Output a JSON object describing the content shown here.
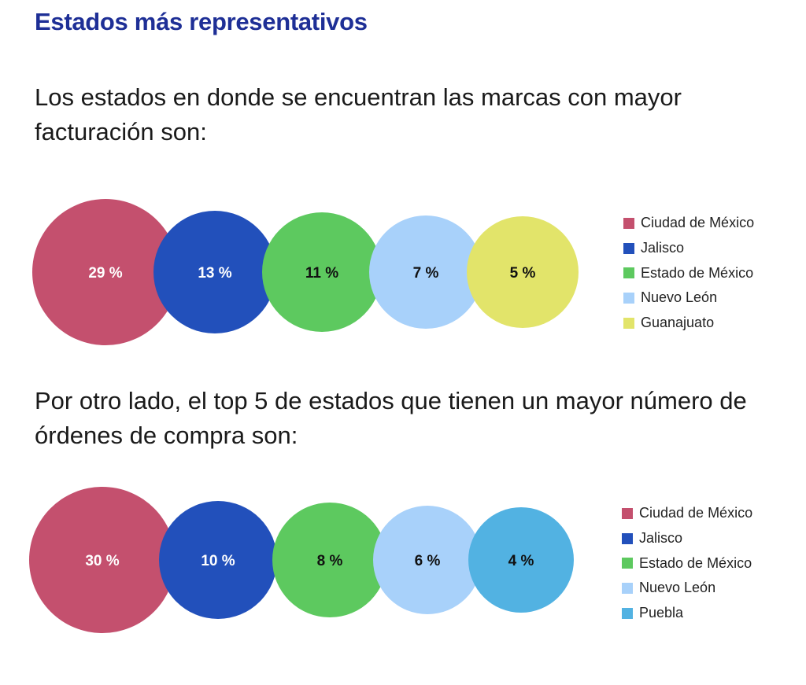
{
  "title": "Estados más representativos",
  "para1": "Los estados en donde se encuentran las marcas con mayor facturación son:",
  "para2": "Por otro lado, el top 5 de estados que tienen un mayor número de órdenes de compra son:",
  "chart_data": [
    {
      "type": "bubble",
      "categories": [
        "Ciudad de México",
        "Jalisco",
        "Estado de México",
        "Nuevo León",
        "Guanajuato"
      ],
      "values": [
        29,
        13,
        11,
        7,
        5
      ],
      "labels": [
        "29 %",
        "13 %",
        "11 %",
        "7 %",
        "5 %"
      ],
      "colors": [
        "#c4506e",
        "#2250bb",
        "#5dc95f",
        "#a8d1fa",
        "#e2e46a"
      ],
      "label_colors": [
        "#ffffff",
        "#ffffff",
        "#111111",
        "#111111",
        "#111111"
      ],
      "legend": "right"
    },
    {
      "type": "bubble",
      "categories": [
        "Ciudad de México",
        "Jalisco",
        "Estado de México",
        "Nuevo León",
        "Puebla"
      ],
      "values": [
        30,
        10,
        8,
        6,
        4
      ],
      "labels": [
        "30 %",
        "10 %",
        "8 %",
        "6 %",
        "4 %"
      ],
      "colors": [
        "#c4506e",
        "#2250bb",
        "#5dc95f",
        "#a8d1fa",
        "#52b2e2"
      ],
      "label_colors": [
        "#ffffff",
        "#ffffff",
        "#111111",
        "#111111",
        "#111111"
      ],
      "legend": "right"
    }
  ]
}
